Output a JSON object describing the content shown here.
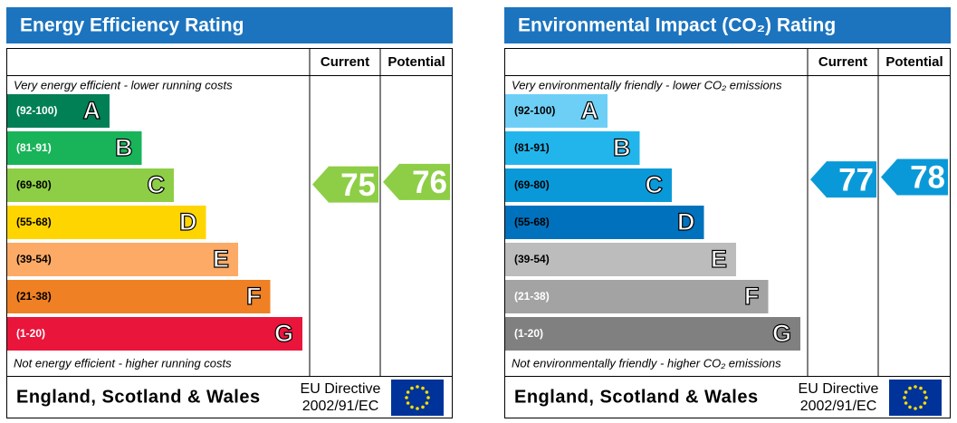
{
  "panels": [
    {
      "title": "Energy Efficiency Rating",
      "color": "#1c74bf",
      "columns": [
        "Current",
        "Potential"
      ],
      "top_note": "Very energy efficient - lower running costs",
      "bottom_note": "Not energy efficient - higher running costs",
      "bands": [
        {
          "range": "(92-100)",
          "letter": "A",
          "color": "#008054",
          "label_color": "#ffffff"
        },
        {
          "range": "(81-91)",
          "letter": "B",
          "color": "#19b459",
          "label_color": "#ffffff"
        },
        {
          "range": "(69-80)",
          "letter": "C",
          "color": "#8dce46",
          "label_color": "#000000"
        },
        {
          "range": "(55-68)",
          "letter": "D",
          "color": "#ffd500",
          "label_color": "#000000"
        },
        {
          "range": "(39-54)",
          "letter": "E",
          "color": "#fcaa65",
          "label_color": "#000000"
        },
        {
          "range": "(21-38)",
          "letter": "F",
          "color": "#ef8023",
          "label_color": "#000000"
        },
        {
          "range": "(1-20)",
          "letter": "G",
          "color": "#e9153b",
          "label_color": "#ffffff"
        }
      ],
      "current": 75,
      "potential": 76,
      "footer": {
        "region": "England, Scotland & Wales",
        "directive": [
          "EU Directive",
          "2002/91/EC"
        ]
      }
    },
    {
      "title": "Environmental Impact (CO₂) Rating",
      "color": "#1c74bf",
      "columns": [
        "Current",
        "Potential"
      ],
      "top_note": "Very environmentally friendly - lower CO₂ emissions",
      "bottom_note": "Not environmentally friendly - higher CO₂ emissions",
      "bands": [
        {
          "range": "(92-100)",
          "letter": "A",
          "color": "#6ecff6",
          "label_color": "#000000"
        },
        {
          "range": "(81-91)",
          "letter": "B",
          "color": "#22b5eb",
          "label_color": "#000000"
        },
        {
          "range": "(69-80)",
          "letter": "C",
          "color": "#0a99d8",
          "label_color": "#000000"
        },
        {
          "range": "(55-68)",
          "letter": "D",
          "color": "#0071bd",
          "label_color": "#000000"
        },
        {
          "range": "(39-54)",
          "letter": "E",
          "color": "#bcbcbc",
          "label_color": "#000000"
        },
        {
          "range": "(21-38)",
          "letter": "F",
          "color": "#a3a3a3",
          "label_color": "#ffffff"
        },
        {
          "range": "(1-20)",
          "letter": "G",
          "color": "#808080",
          "label_color": "#ffffff"
        }
      ],
      "current": 77,
      "potential": 78,
      "footer": {
        "region": "England, Scotland & Wales",
        "directive": [
          "EU Directive",
          "2002/91/EC"
        ]
      }
    }
  ]
}
